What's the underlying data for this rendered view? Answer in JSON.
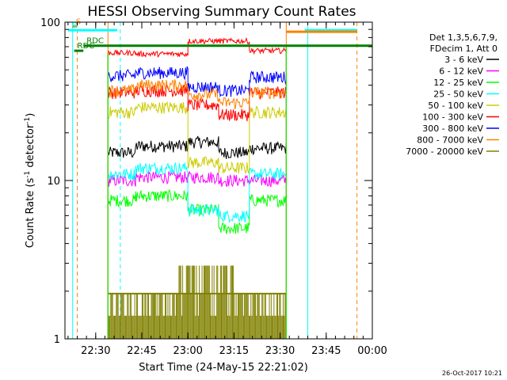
{
  "chart_data": {
    "type": "line",
    "title": "HESSI Observing Summary Count Rates",
    "xlabel": "Start Time (24-May-15 22:21:02)",
    "ylabel_main": "Count Rate (s",
    "ylabel_sup": "-1",
    "ylabel_tail": " detector",
    "ylabel_end": ")",
    "yscale": "log",
    "ylim": [
      1,
      100
    ],
    "xlim_minutes": [
      -1,
      99
    ],
    "x_ticks": [
      {
        "m": 9,
        "label": "22:30"
      },
      {
        "m": 24,
        "label": "22:45"
      },
      {
        "m": 39,
        "label": "23:00"
      },
      {
        "m": 54,
        "label": "23:15"
      },
      {
        "m": 69,
        "label": "23:30"
      },
      {
        "m": 84,
        "label": "23:45"
      },
      {
        "m": 99,
        "label": "00:00"
      }
    ],
    "y_major": [
      {
        "v": 1,
        "label": "1"
      },
      {
        "v": 10,
        "label": "10"
      },
      {
        "v": 100,
        "label": "100"
      }
    ],
    "legend_header": [
      "Det 1,3,5,6,7,9,",
      "FDecim 1, Att 0"
    ],
    "series": [
      {
        "name": "3 - 6 keV",
        "color": "#000000",
        "levels": [
          [
            13,
            22,
            15
          ],
          [
            22,
            39,
            16.5
          ],
          [
            39,
            49,
            17.5
          ],
          [
            49,
            59,
            15
          ],
          [
            59,
            71,
            16
          ]
        ]
      },
      {
        "name": "6 - 12 keV",
        "color": "#ff00ff",
        "levels": [
          [
            13,
            22,
            10
          ],
          [
            22,
            39,
            10.5
          ],
          [
            39,
            49,
            10.5
          ],
          [
            49,
            59,
            10
          ],
          [
            59,
            71,
            10
          ]
        ]
      },
      {
        "name": "12 - 25 keV",
        "color": "#00ff00",
        "levels": [
          [
            13,
            22,
            7.5
          ],
          [
            22,
            39,
            8
          ],
          [
            39,
            49,
            6.5
          ],
          [
            49,
            59,
            5
          ],
          [
            59,
            71,
            7.5
          ]
        ]
      },
      {
        "name": "25 - 50 keV",
        "color": "#00ffff",
        "levels": [
          [
            13,
            22,
            11
          ],
          [
            22,
            39,
            12
          ],
          [
            39,
            49,
            6.5
          ],
          [
            49,
            59,
            6
          ],
          [
            59,
            71,
            11
          ]
        ]
      },
      {
        "name": "50 - 100 keV",
        "color": "#cccc00",
        "levels": [
          [
            13,
            22,
            27
          ],
          [
            22,
            39,
            29
          ],
          [
            39,
            49,
            13
          ],
          [
            49,
            59,
            12
          ],
          [
            59,
            71,
            27
          ]
        ]
      },
      {
        "name": "100 - 300 keV",
        "color": "#ff0000",
        "levels": [
          [
            13,
            22,
            36
          ],
          [
            22,
            39,
            37
          ],
          [
            39,
            49,
            30
          ],
          [
            49,
            59,
            26
          ],
          [
            59,
            71,
            36
          ]
        ]
      },
      {
        "name": "300 - 800 keV",
        "color": "#0000ff",
        "levels": [
          [
            13,
            22,
            46
          ],
          [
            22,
            39,
            48
          ],
          [
            39,
            49,
            39
          ],
          [
            49,
            59,
            37
          ],
          [
            59,
            71,
            45
          ]
        ]
      },
      {
        "name": "800 - 7000 keV",
        "color": "#ff8000",
        "levels": [
          [
            13,
            22,
            37
          ],
          [
            22,
            39,
            40
          ],
          [
            39,
            49,
            35
          ],
          [
            49,
            59,
            31
          ],
          [
            59,
            71,
            36
          ]
        ]
      },
      {
        "name": "7000 - 20000 keV",
        "color": "#808000",
        "levels": [
          [
            13,
            22,
            1.5
          ],
          [
            22,
            39,
            1.5
          ],
          [
            39,
            49,
            1.6
          ],
          [
            49,
            59,
            1.5
          ],
          [
            59,
            71,
            1.5
          ]
        ]
      }
    ],
    "top_series": {
      "color": "#ff0000",
      "levels": [
        [
          13,
          22,
          64
        ],
        [
          22,
          39,
          63
        ],
        [
          39,
          49,
          76
        ],
        [
          49,
          59,
          76
        ],
        [
          59,
          71,
          66
        ]
      ]
    },
    "markers": [
      {
        "label": "S",
        "color": "#ff8000",
        "y": 94,
        "segments": [
          [
            1.5,
            3
          ]
        ]
      },
      {
        "label": "N",
        "color": "#00ffff",
        "y": 89,
        "segments": [
          [
            0,
            16
          ],
          [
            77,
            94
          ]
        ]
      },
      {
        "label": "RDC",
        "color": "#008000",
        "y": 71,
        "segments": [
          [
            5,
            13
          ],
          [
            13,
            71
          ],
          [
            71,
            99
          ]
        ]
      },
      {
        "label": "RDC",
        "color": "#008000",
        "y": 66,
        "segments": [
          [
            2,
            5
          ]
        ]
      }
    ],
    "orange_top_band": {
      "color": "#ff8000",
      "y": 87,
      "from": 71,
      "to": 94
    },
    "vertical_lines": [
      {
        "m": 1.5,
        "color": "#00ffff",
        "dash": false
      },
      {
        "m": 3,
        "color": "#ff8000",
        "dash": true
      },
      {
        "m": 13,
        "color": "#ff8000",
        "dash": false
      },
      {
        "m": 17,
        "color": "#00ffff",
        "dash": true
      },
      {
        "m": 71,
        "color": "#ff8000",
        "dash": false
      },
      {
        "m": 78,
        "color": "#00ffff",
        "dash": false
      },
      {
        "m": 94,
        "color": "#ff8000",
        "dash": true
      }
    ],
    "timestamp": "26-Oct-2017 10:21"
  }
}
